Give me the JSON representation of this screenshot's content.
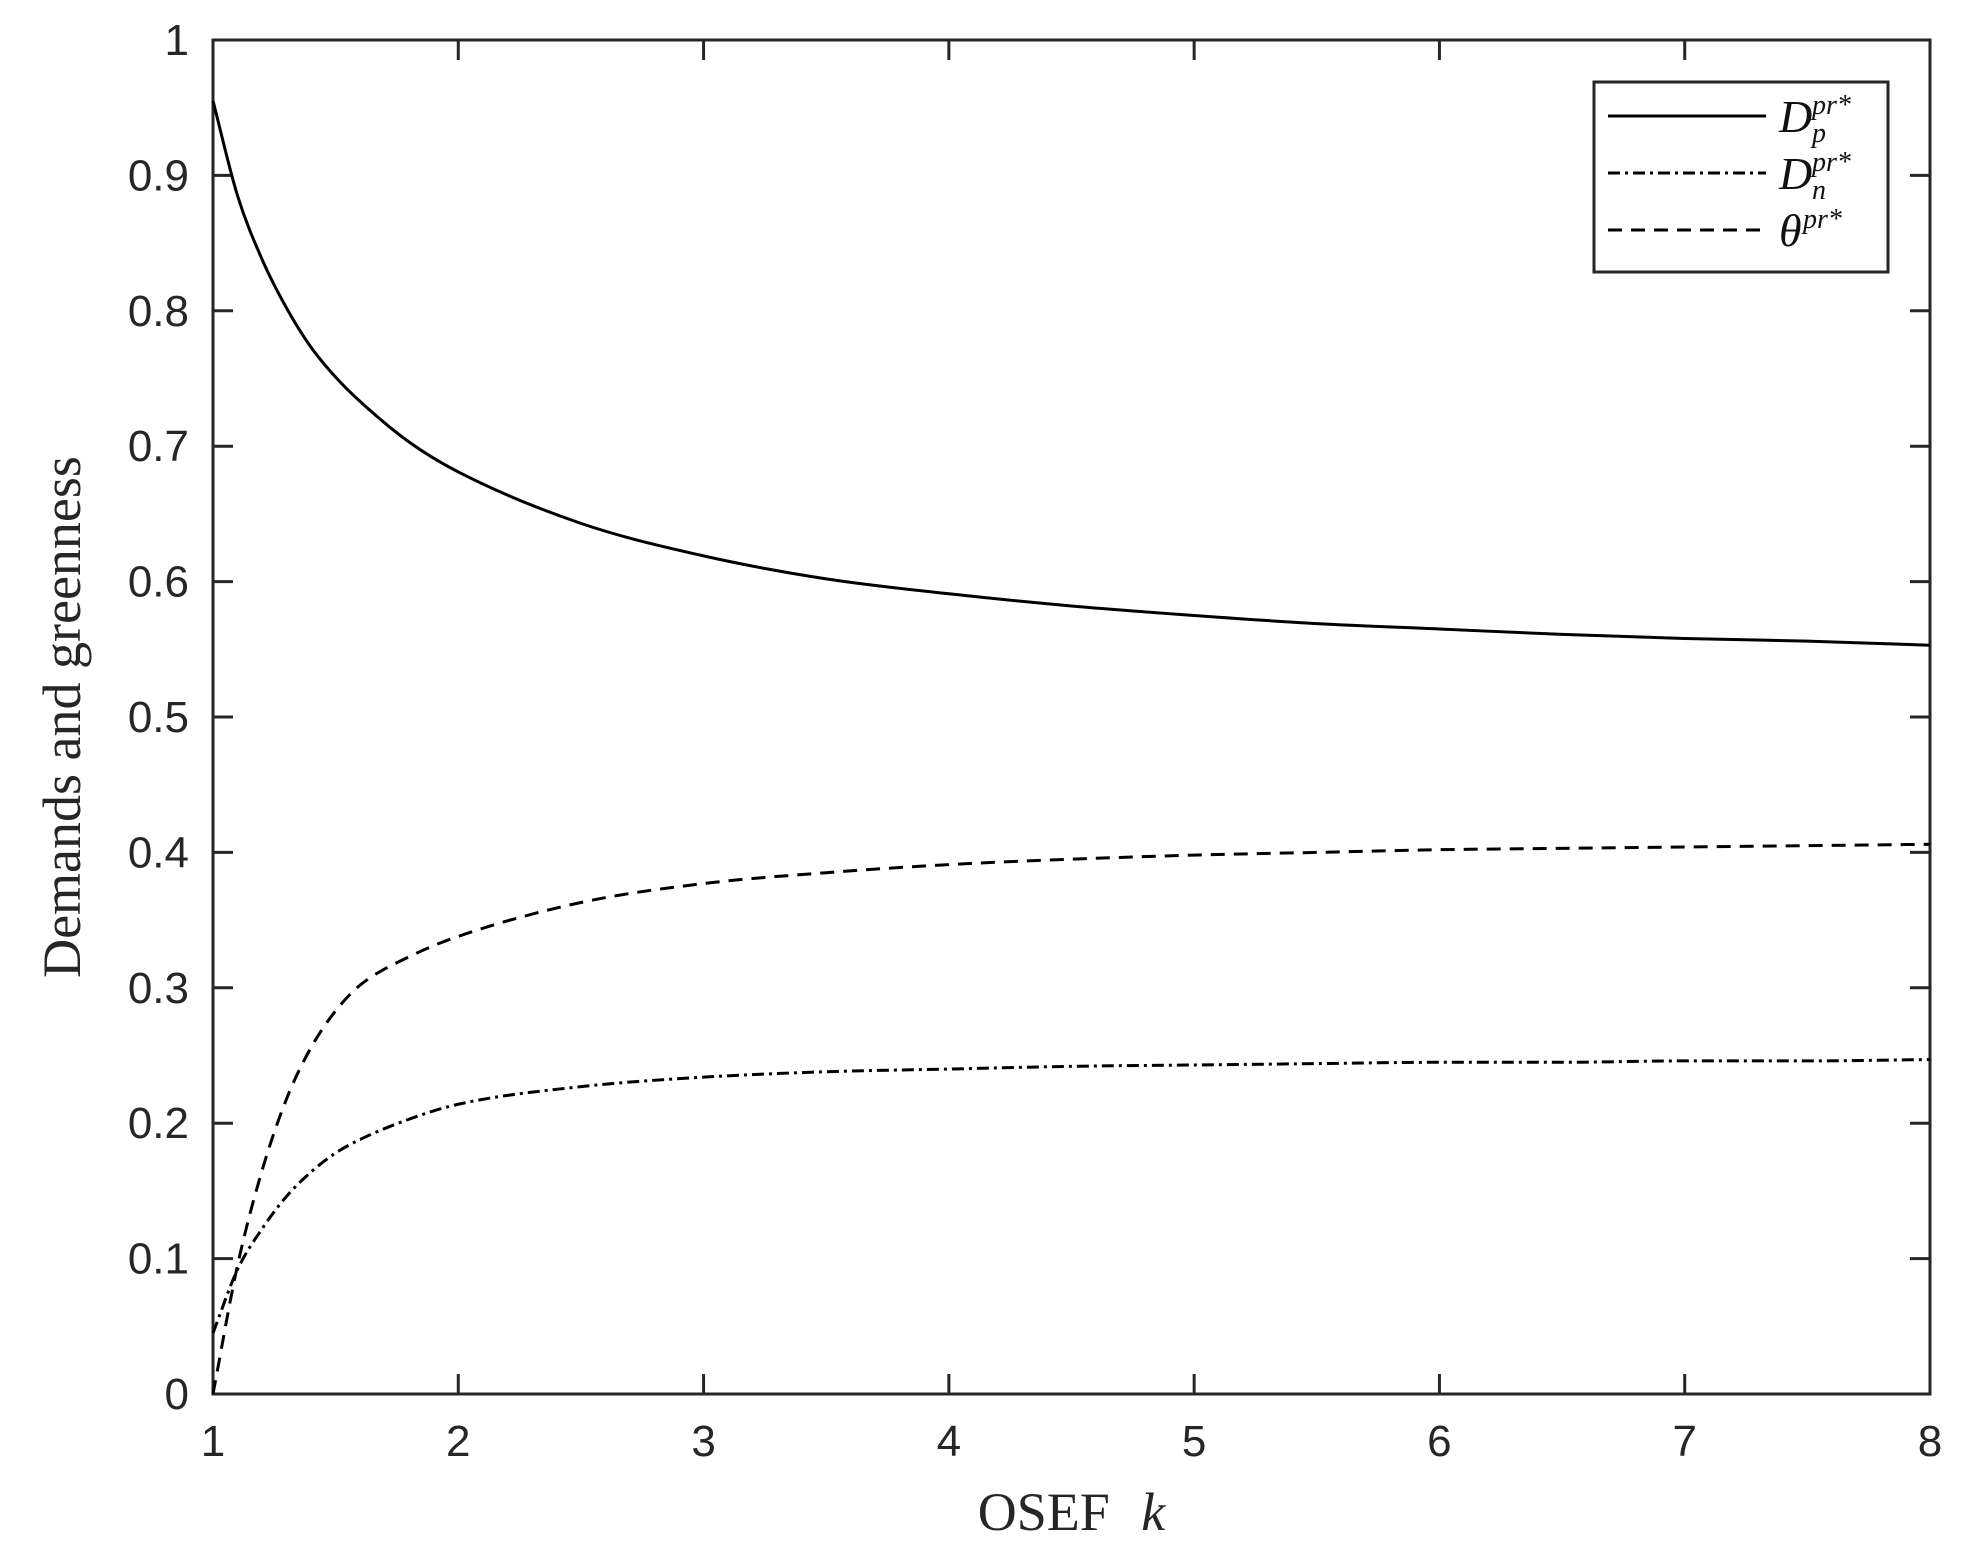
{
  "chart_data": {
    "type": "line",
    "xlabel_text": "OSEF",
    "xlabel_var": "k",
    "ylabel": "Demands and greenness",
    "xlim": [
      1,
      8
    ],
    "ylim": [
      0,
      1
    ],
    "xticks": [
      1,
      2,
      3,
      4,
      5,
      6,
      7,
      8
    ],
    "yticks": [
      0,
      0.1,
      0.2,
      0.3,
      0.4,
      0.5,
      0.6,
      0.7,
      0.8,
      0.9,
      1
    ],
    "x": [
      1,
      1.1,
      1.2,
      1.3,
      1.4,
      1.5,
      1.6,
      1.8,
      2,
      2.5,
      3,
      3.5,
      4,
      4.5,
      5,
      5.5,
      6,
      6.5,
      7,
      7.5,
      8
    ],
    "series": [
      {
        "id": "Dp",
        "symbol": "D",
        "sup": "pr*",
        "sub": "p",
        "dash": "solid",
        "color": "#000000",
        "values": [
          0.955,
          0.885,
          0.838,
          0.802,
          0.773,
          0.751,
          0.733,
          0.703,
          0.681,
          0.643,
          0.619,
          0.602,
          0.591,
          0.582,
          0.575,
          0.569,
          0.565,
          0.561,
          0.558,
          0.556,
          0.553
        ]
      },
      {
        "id": "Dn",
        "symbol": "D",
        "sup": "pr*",
        "sub": "n",
        "dash": "dashdot",
        "color": "#000000",
        "values": [
          0.045,
          0.092,
          0.122,
          0.146,
          0.164,
          0.178,
          0.188,
          0.203,
          0.214,
          0.227,
          0.234,
          0.238,
          0.24,
          0.242,
          0.243,
          0.244,
          0.245,
          0.245,
          0.246,
          0.246,
          0.247
        ]
      },
      {
        "id": "theta",
        "symbol": "θ",
        "sup": "pr*",
        "sub": "",
        "dash": "dashed",
        "color": "#000000",
        "values": [
          0.0,
          0.095,
          0.165,
          0.218,
          0.256,
          0.283,
          0.302,
          0.323,
          0.338,
          0.363,
          0.377,
          0.385,
          0.391,
          0.395,
          0.398,
          0.4,
          0.402,
          0.403,
          0.404,
          0.405,
          0.406
        ]
      }
    ],
    "legend_position": "top-right",
    "grid": false,
    "box": true
  }
}
